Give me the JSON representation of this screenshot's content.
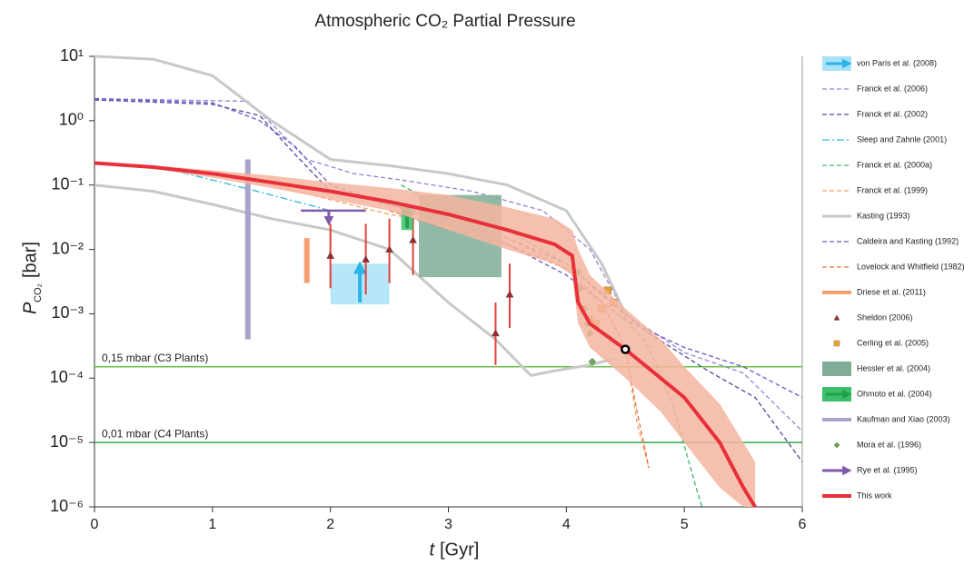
{
  "chart_data": {
    "type": "line",
    "title": "Atmospheric CO₂ Partial Pressure",
    "x_label": "t",
    "x_label_unit": "[Gyr]",
    "y_label": "P",
    "y_label_sub": "CO₂",
    "y_label_unit": "[bar]",
    "xlim": [
      0,
      6
    ],
    "xticks": [
      0,
      1,
      2,
      3,
      4,
      5,
      6
    ],
    "log_y": true,
    "ylim": [
      1e-06,
      10
    ],
    "yticks": [
      {
        "value": 1e-06,
        "label": "10⁻⁶"
      },
      {
        "value": 1e-05,
        "label": "10⁻⁵"
      },
      {
        "value": 0.0001,
        "label": "10⁻⁴"
      },
      {
        "value": 0.001,
        "label": "10⁻³"
      },
      {
        "value": 0.01,
        "label": "10⁻²"
      },
      {
        "value": 0.1,
        "label": "10⁻¹"
      },
      {
        "value": 1,
        "label": "10⁰"
      },
      {
        "value": 10,
        "label": "10¹"
      }
    ],
    "hlines": [
      {
        "value": 0.00015,
        "label": "0,15 mbar (C3 Plants)",
        "color": "#6cc24a"
      },
      {
        "value": 1e-05,
        "label": "0,01 mbar (C4 Plants)",
        "color": "#2aa84a"
      }
    ],
    "series": [
      {
        "name": "von Paris et al. (2008)",
        "kind": "box",
        "color": "#29b5e8",
        "fill": "#a9e2f7",
        "x": [
          2.0,
          2.5
        ],
        "values": [
          0.0014,
          0.006
        ]
      },
      {
        "name": "Franck et al. (2006)",
        "kind": "line",
        "color": "#9b7fd4",
        "dash": "5 3",
        "x": [
          0,
          1.3,
          1.5,
          1.8,
          2.2,
          2.6,
          3.2,
          3.8,
          4.2,
          4.5,
          5,
          5.5,
          6
        ],
        "values": [
          2.2,
          2.0,
          0.9,
          0.25,
          0.15,
          0.12,
          0.08,
          0.04,
          0.01,
          0.001,
          0.00025,
          0.00012,
          1.5e-05
        ]
      },
      {
        "name": "Franck et al. (2002)",
        "kind": "line",
        "color": "#4b4a9a",
        "dash": "5 3",
        "x": [
          0,
          1.0,
          1.4,
          1.7,
          2.0,
          2.5,
          3.0,
          3.5,
          4.0,
          4.3,
          4.7,
          5.2,
          5.6,
          6
        ],
        "values": [
          2.1,
          1.8,
          1.2,
          0.3,
          0.08,
          0.05,
          0.025,
          0.015,
          0.006,
          0.002,
          0.0005,
          0.00013,
          5e-05,
          5e-06
        ]
      },
      {
        "name": "Sleep and Zahnle (2001)",
        "kind": "line",
        "color": "#31b8e0",
        "dash": "8 3 2 3",
        "x": [
          0.5,
          1.0,
          1.5,
          2.0
        ],
        "values": [
          0.2,
          0.12,
          0.07,
          0.04
        ]
      },
      {
        "name": "Franck et al. (2000a)",
        "kind": "line",
        "color": "#3cb371",
        "dash": "5 3",
        "x": [
          2.6,
          3.0,
          3.5,
          4.0,
          4.4,
          4.7,
          4.9,
          5.1,
          5.15
        ],
        "values": [
          0.1,
          0.04,
          0.02,
          0.006,
          0.0015,
          0.0003,
          4e-05,
          2e-06,
          1e-06
        ]
      },
      {
        "name": "Franck et al. (1999)",
        "kind": "line",
        "color": "#f4a460",
        "dash": "5 3",
        "x": [
          1.5,
          2.5,
          3.0,
          3.5,
          4.0,
          4.3,
          4.5,
          4.6,
          4.7
        ],
        "values": [
          0.1,
          0.035,
          0.025,
          0.015,
          0.005,
          0.0015,
          0.0003,
          2e-05,
          4e-06
        ]
      },
      {
        "name": "Kasting (1993)",
        "kind": "band",
        "color": "#c8c8c8",
        "x": [
          0,
          0.5,
          1.0,
          1.5,
          2.0,
          2.5,
          3.0,
          3.5,
          4.0,
          4.3,
          4.5
        ],
        "values": [
          10,
          9,
          5,
          1.0,
          0.25,
          0.2,
          0.15,
          0.1,
          0.04,
          0.006,
          0.001
        ],
        "x_lower": [
          0,
          0.5,
          1.0,
          1.5,
          2.0,
          2.5,
          3.0,
          3.4,
          3.7,
          3.9,
          4.2,
          4.4
        ],
        "lower": [
          0.1,
          0.08,
          0.05,
          0.03,
          0.02,
          0.01,
          0.0015,
          0.0004,
          0.00011,
          0.00013,
          0.00016,
          0.0002
        ]
      },
      {
        "name": "Caldeira and Kasting (1992)",
        "kind": "line",
        "color": "#6a5acd",
        "dash": "5 3",
        "x": [
          0,
          1.0,
          1.4,
          1.7,
          2.0,
          2.5,
          3.0,
          3.5,
          4.0,
          4.5,
          5,
          5.5,
          6
        ],
        "values": [
          2.2,
          1.9,
          1.0,
          0.4,
          0.1,
          0.05,
          0.03,
          0.012,
          0.004,
          0.0008,
          0.0003,
          0.00015,
          5e-05
        ]
      },
      {
        "name": "Lovelock and Whitfield (1982)",
        "kind": "line",
        "color": "#e8734a",
        "dash": "5 3",
        "x": [
          2.5,
          3.0,
          3.5,
          4.0,
          4.3,
          4.5,
          4.6,
          4.7
        ],
        "values": [
          0.04,
          0.02,
          0.012,
          0.005,
          0.0015,
          0.0003,
          3e-05,
          4e-06
        ]
      },
      {
        "name": "Driese et al. (2011)",
        "kind": "vbar",
        "color": "#f4a070",
        "x": [
          1.8,
          1.8
        ],
        "values": [
          0.003,
          0.015
        ]
      },
      {
        "name": "Sheldon (2006)",
        "kind": "points",
        "shape": "triangle",
        "color": "#a0282a",
        "err_color": "#e0403a",
        "x": [
          2.0,
          2.3,
          2.5,
          2.7,
          3.4,
          3.52
        ],
        "values": [
          0.008,
          0.007,
          0.01,
          0.014,
          0.0005,
          0.002
        ],
        "low": [
          0.0025,
          0.002,
          0.003,
          0.004,
          0.00016,
          0.0006
        ],
        "high": [
          0.025,
          0.025,
          0.03,
          0.03,
          0.0015,
          0.006
        ]
      },
      {
        "name": "Cerling et al. (2005)",
        "kind": "points",
        "shape": "square",
        "color": "#f0a030",
        "x": [
          4.2,
          4.3,
          4.35,
          4.4,
          4.25
        ],
        "values": [
          0.0008,
          0.0012,
          0.0023,
          0.0015,
          0.0007
        ]
      },
      {
        "name": "Hessler et al. (2004)",
        "kind": "box",
        "color": "#7fad96",
        "fill": "#7fad96",
        "x": [
          2.75,
          3.45
        ],
        "values": [
          0.0037,
          0.07
        ]
      },
      {
        "name": "Ohmoto et al. (2004)",
        "kind": "box",
        "color": "#22a050",
        "fill": "#3cbf6a",
        "x": [
          2.6,
          2.7
        ],
        "values": [
          0.02,
          0.05
        ]
      },
      {
        "name": "Kaufman and Xiao (2003)",
        "kind": "vbar",
        "color": "#a9a3c9",
        "x": [
          1.3,
          1.3
        ],
        "values": [
          0.0004,
          0.25
        ]
      },
      {
        "name": "Mora et al. (1996)",
        "kind": "points",
        "shape": "diamond",
        "color": "#6aa84f",
        "x": [
          4.1,
          4.12,
          4.15,
          4.18,
          4.2,
          4.22
        ],
        "values": [
          0.0045,
          0.0025,
          0.0012,
          0.0007,
          0.0005,
          0.00018
        ]
      },
      {
        "name": "Rye et al. (1995)",
        "kind": "limit",
        "color": "#7e5ba8",
        "x": [
          1.75,
          2.3
        ],
        "values": [
          0.04,
          0.04
        ]
      },
      {
        "name": "This work",
        "kind": "line",
        "width": 4,
        "color": "#e8303a",
        "band_color": "#f5b5a0",
        "x": [
          0,
          0.5,
          1.0,
          1.5,
          2.0,
          2.5,
          3.0,
          3.5,
          3.9,
          4.05,
          4.1,
          4.2,
          4.5,
          4.8,
          5.0,
          5.3,
          5.5,
          5.6
        ],
        "values": [
          0.22,
          0.19,
          0.15,
          0.11,
          0.08,
          0.055,
          0.035,
          0.02,
          0.012,
          0.008,
          0.0015,
          0.0007,
          0.00028,
          0.0001,
          5e-05,
          1e-05,
          2e-06,
          1e-06
        ],
        "band_high": [
          0.22,
          0.2,
          0.17,
          0.14,
          0.11,
          0.09,
          0.07,
          0.045,
          0.03,
          0.02,
          0.01,
          0.004,
          0.0012,
          0.0004,
          0.00015,
          4e-05,
          1e-05,
          5e-06
        ],
        "band_low": [
          0.22,
          0.18,
          0.13,
          0.09,
          0.06,
          0.04,
          0.02,
          0.01,
          0.006,
          0.004,
          0.0007,
          0.0003,
          0.0001,
          3e-05,
          1e-05,
          2e-06,
          1e-06,
          1e-06
        ]
      }
    ],
    "marker": {
      "x": 4.5,
      "value": 0.00028,
      "color": "#000000"
    }
  }
}
